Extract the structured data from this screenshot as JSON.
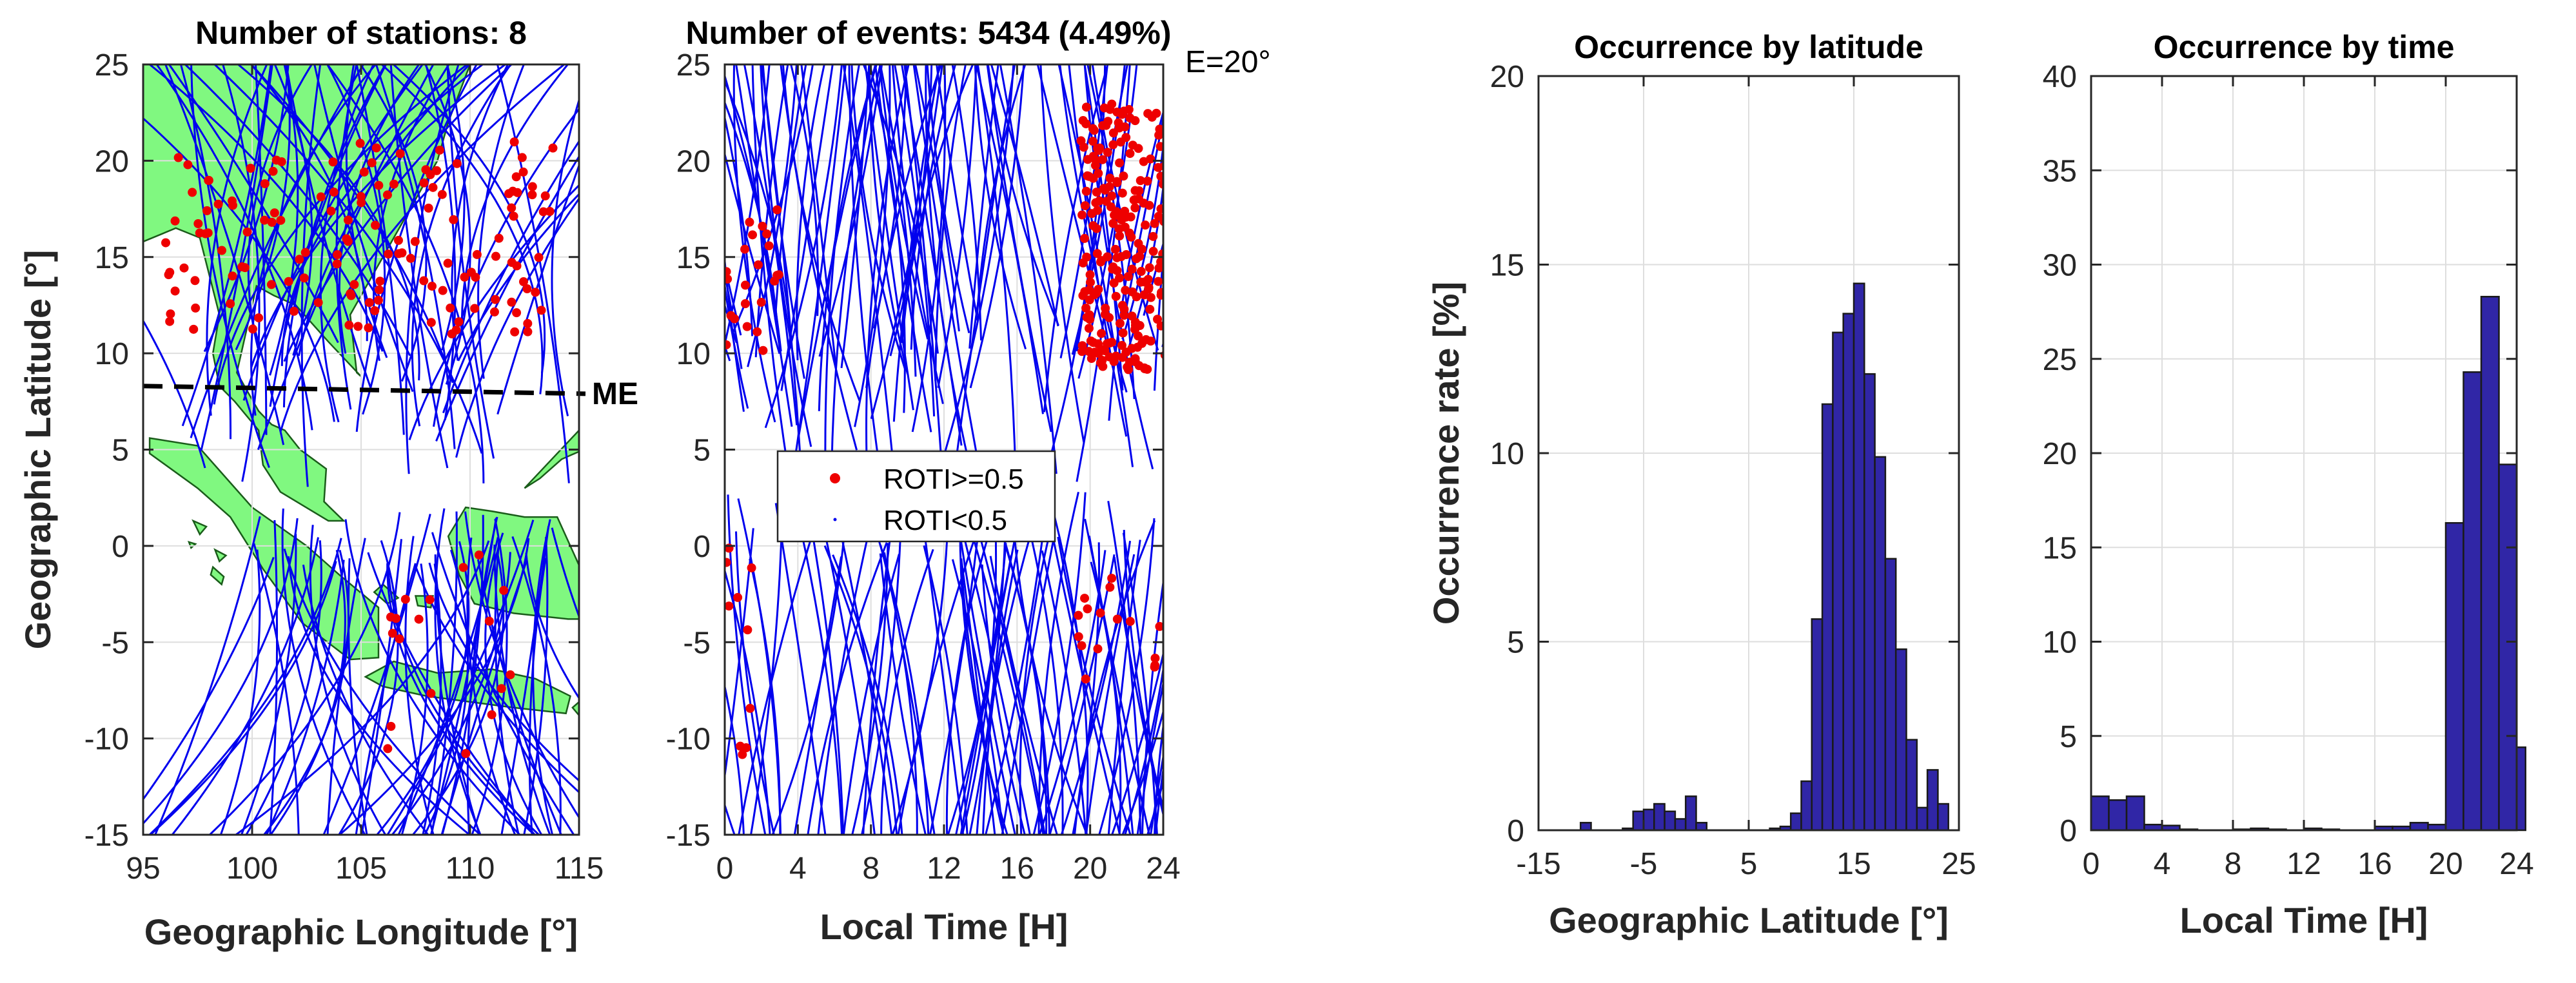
{
  "chart_data": [
    {
      "id": "map",
      "type": "map",
      "title": "Number of stations: 8",
      "xlabel": "Geographic Longitude [°]",
      "ylabel": "Geographic Latitude [°]",
      "xlim": [
        95,
        115
      ],
      "ylim": [
        -15,
        25
      ],
      "xticks": [
        95,
        100,
        105,
        110,
        115
      ],
      "yticks": [
        -15,
        -10,
        -5,
        0,
        5,
        10,
        15,
        20,
        25
      ],
      "magnetic_equator": {
        "label": "ME",
        "lat_west": 8.3,
        "lat_east": 7.9
      },
      "colors": {
        "land": "#80f880",
        "coast": "#1a5c1a",
        "track": "#0000ee",
        "event": "#ee0000",
        "equator": "#000000"
      }
    },
    {
      "id": "time",
      "type": "scatter",
      "title": "Number of events: 5434 (4.49%)",
      "annotation": "E=20°",
      "xlabel": "Local Time [H]",
      "xlim": [
        0,
        24
      ],
      "ylim": [
        -15,
        25
      ],
      "xticks": [
        0,
        4,
        8,
        12,
        16,
        20,
        24
      ],
      "yticks": [
        -15,
        -10,
        -5,
        0,
        5,
        10,
        15,
        20,
        25
      ],
      "legend": [
        {
          "label": "ROTI>=0.5",
          "color": "#ee0000",
          "marker": "dot"
        },
        {
          "label": "ROTI<0.5",
          "color": "#0000ee",
          "marker": "point"
        }
      ]
    },
    {
      "id": "lat_hist",
      "type": "bar",
      "title": "Occurrence by latitude",
      "xlabel": "Geographic Latitude [°]",
      "ylabel": "Occurrence rate [%]",
      "xlim": [
        -15,
        25
      ],
      "ylim": [
        0,
        20
      ],
      "xticks": [
        -15,
        -5,
        5,
        15,
        25
      ],
      "yticks": [
        0,
        5,
        10,
        15,
        20
      ],
      "bin_width": 1,
      "bin_starts": [
        -11,
        -10,
        -9,
        -8,
        -7,
        -6,
        -5,
        -4,
        -3,
        -2,
        -1,
        0,
        1,
        2,
        3,
        4,
        5,
        6,
        7,
        8,
        9,
        10,
        11,
        12,
        13,
        14,
        15,
        16,
        17,
        18,
        19,
        20,
        21,
        22,
        23
      ],
      "values": [
        0.2,
        0.0,
        0.0,
        0.0,
        0.05,
        0.5,
        0.55,
        0.7,
        0.5,
        0.3,
        0.9,
        0.2,
        0.0,
        0.0,
        0.0,
        0.0,
        0.0,
        0.0,
        0.05,
        0.1,
        0.45,
        1.3,
        5.6,
        11.3,
        13.2,
        13.7,
        14.5,
        12.1,
        9.9,
        7.2,
        4.8,
        2.4,
        0.6,
        1.6,
        0.7
      ],
      "bar_color": "#3026a6"
    },
    {
      "id": "time_hist",
      "type": "bar",
      "title": "Occurrence by time",
      "xlabel": "Local Time [H]",
      "xlim": [
        0,
        24
      ],
      "ylim": [
        0,
        40
      ],
      "xticks": [
        0,
        4,
        8,
        12,
        16,
        20,
        24
      ],
      "yticks": [
        0,
        5,
        10,
        15,
        20,
        25,
        30,
        35,
        40
      ],
      "bin_width": 1,
      "bin_starts": [
        0,
        1,
        2,
        3,
        4,
        5,
        6,
        7,
        8,
        9,
        10,
        11,
        12,
        13,
        14,
        15,
        16,
        17,
        18,
        19,
        20,
        21,
        22,
        23
      ],
      "values": [
        1.8,
        1.6,
        1.8,
        0.3,
        0.25,
        0.05,
        0.0,
        0.0,
        0.05,
        0.1,
        0.05,
        0.0,
        0.1,
        0.05,
        0.0,
        0.0,
        0.2,
        0.2,
        0.4,
        0.3,
        16.3,
        24.3,
        28.3,
        19.4
      ],
      "extra_bar": {
        "start": 24,
        "width": 0.5,
        "value": 4.4
      },
      "bar_color": "#3026a6"
    }
  ]
}
